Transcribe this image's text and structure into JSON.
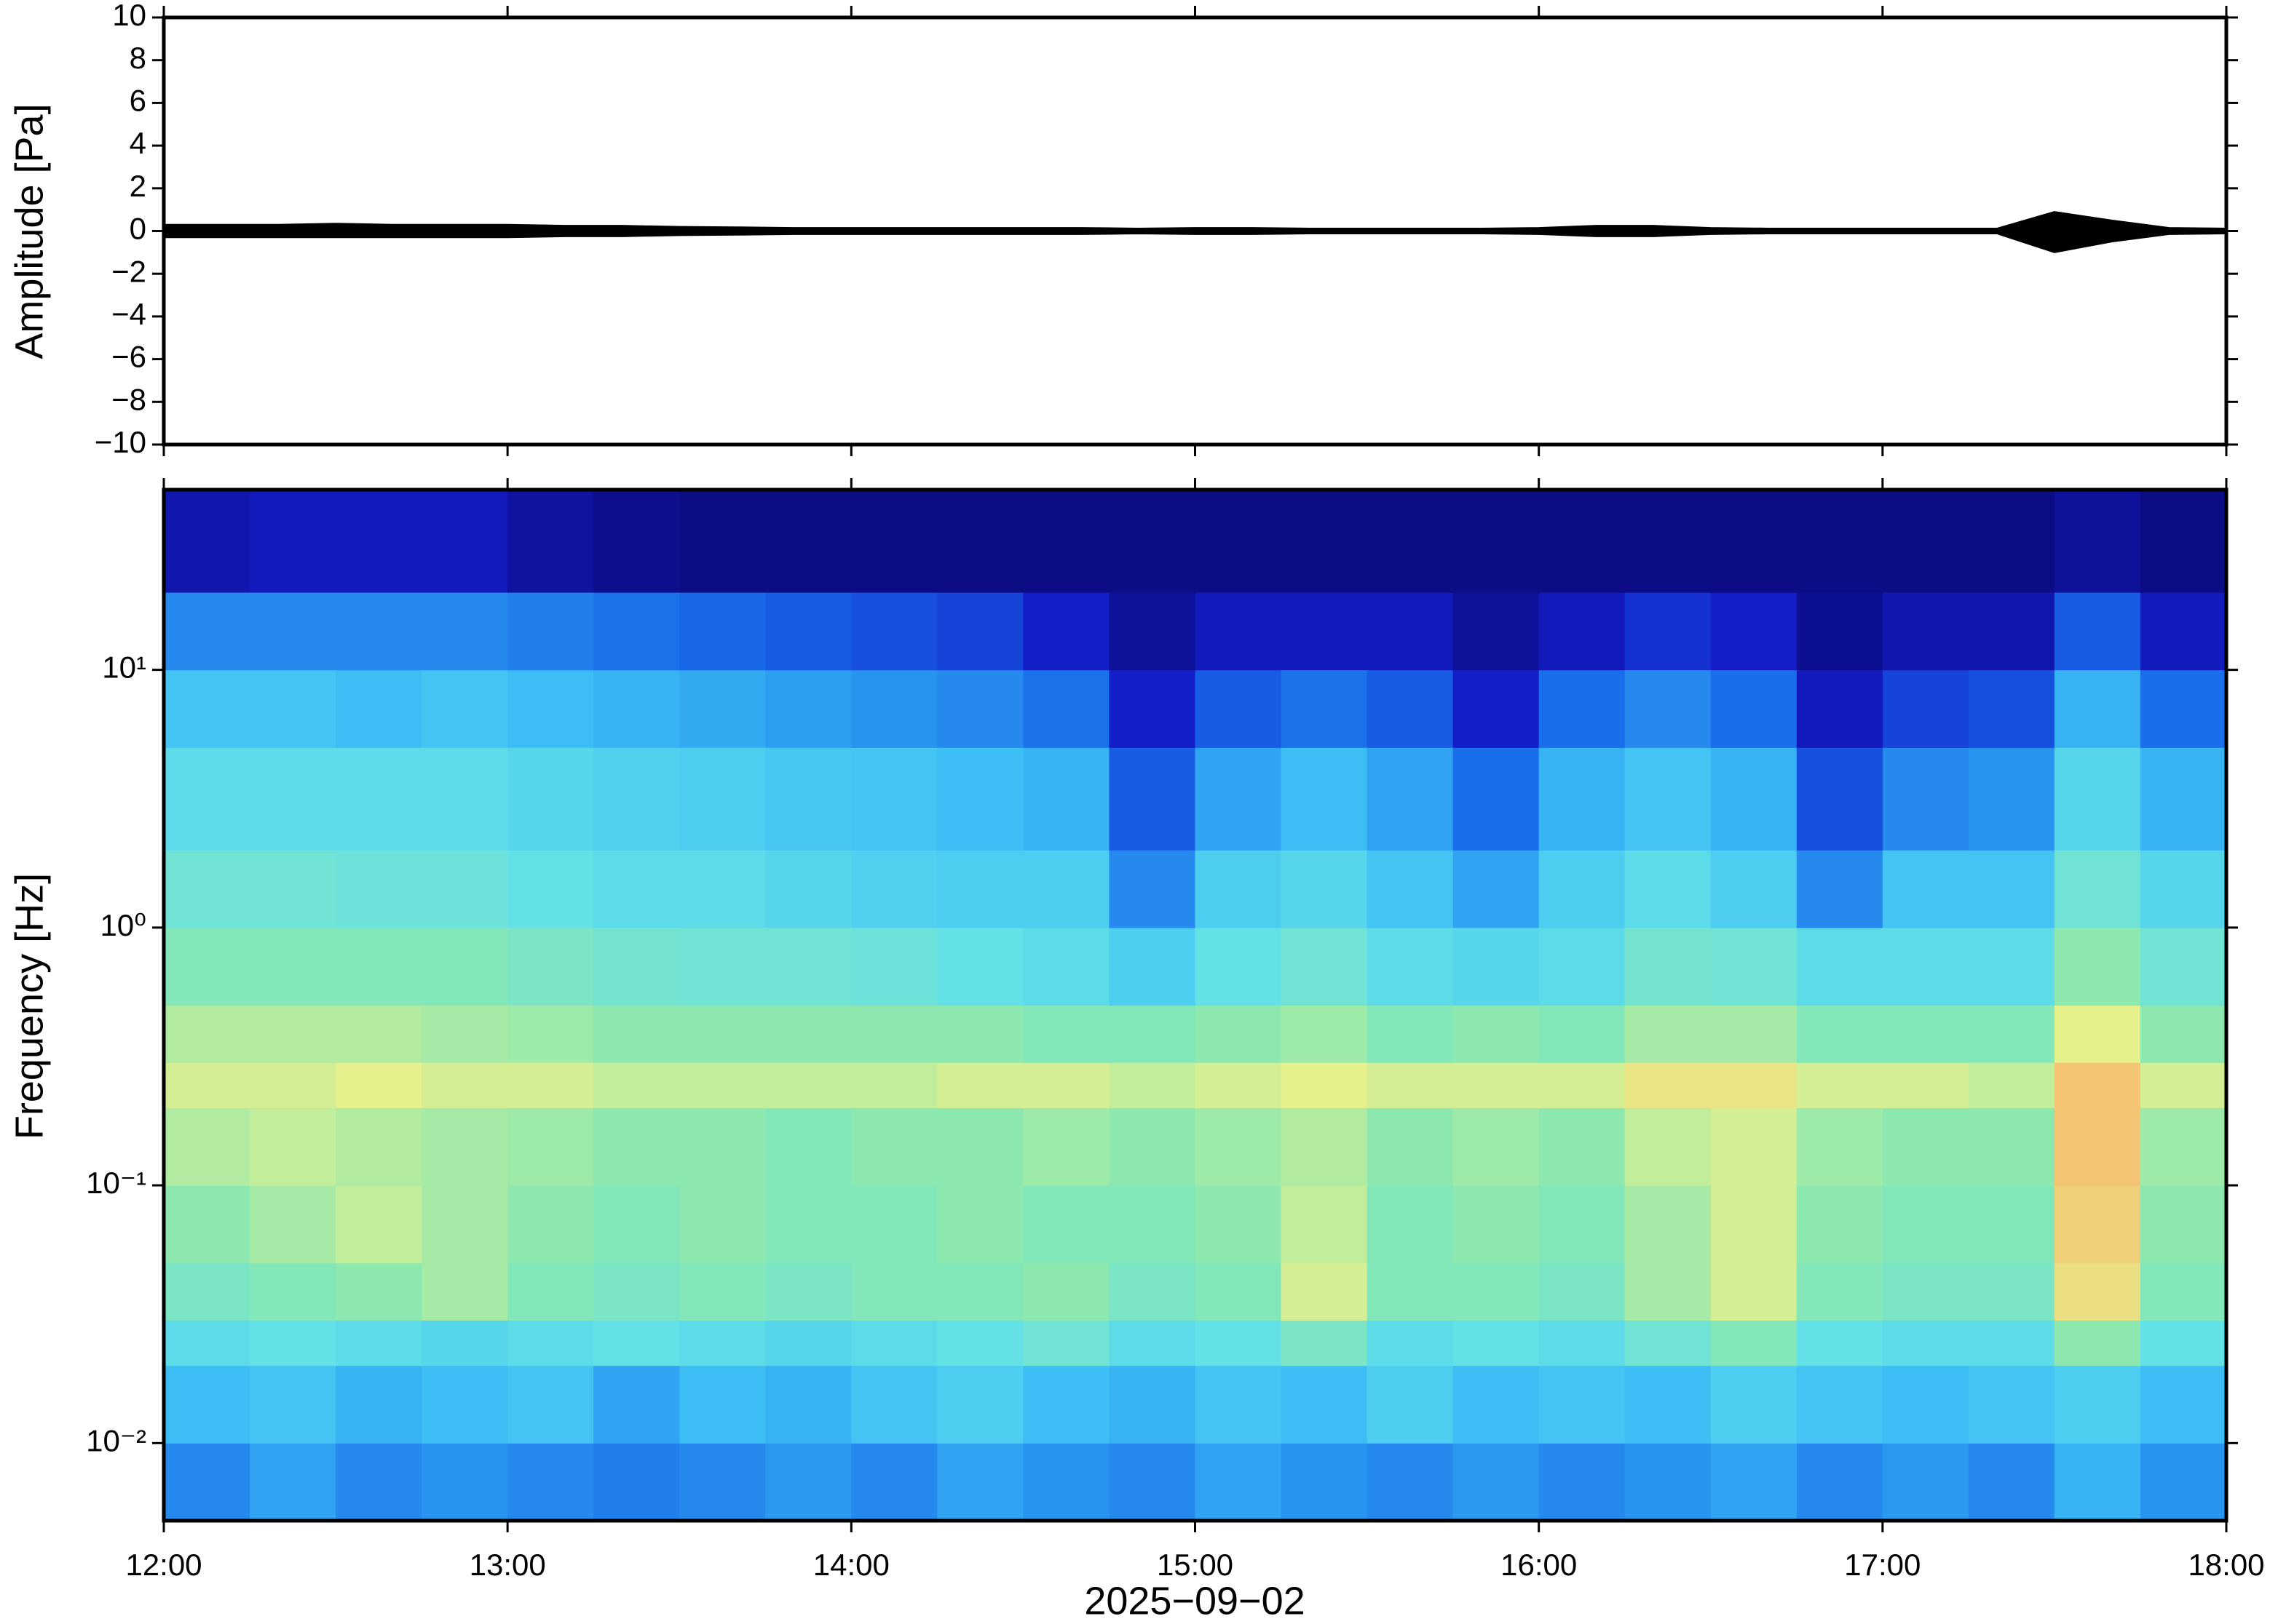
{
  "chart_data": [
    {
      "type": "line",
      "ylabel": "Amplitude [Pa]",
      "color": "#000000",
      "x": [
        "12:00",
        "12:10",
        "12:20",
        "12:30",
        "12:40",
        "12:50",
        "13:00",
        "13:10",
        "13:20",
        "13:30",
        "13:40",
        "13:50",
        "14:00",
        "14:10",
        "14:20",
        "14:30",
        "14:40",
        "14:50",
        "15:00",
        "15:10",
        "15:20",
        "15:30",
        "15:40",
        "15:50",
        "16:00",
        "16:10",
        "16:20",
        "16:30",
        "16:40",
        "16:50",
        "17:00",
        "17:10",
        "17:20",
        "17:30",
        "17:40",
        "17:50",
        "18:00"
      ],
      "upper": [
        0.3,
        0.3,
        0.3,
        0.35,
        0.3,
        0.3,
        0.3,
        0.25,
        0.25,
        0.2,
        0.18,
        0.15,
        0.15,
        0.15,
        0.15,
        0.15,
        0.15,
        0.12,
        0.15,
        0.15,
        0.12,
        0.12,
        0.12,
        0.12,
        0.15,
        0.25,
        0.25,
        0.15,
        0.12,
        0.12,
        0.12,
        0.12,
        0.12,
        0.9,
        0.5,
        0.15,
        0.12
      ],
      "lower": [
        -0.3,
        -0.3,
        -0.3,
        -0.3,
        -0.3,
        -0.3,
        -0.3,
        -0.25,
        -0.25,
        -0.2,
        -0.18,
        -0.15,
        -0.15,
        -0.15,
        -0.15,
        -0.15,
        -0.15,
        -0.12,
        -0.15,
        -0.15,
        -0.12,
        -0.12,
        -0.12,
        -0.12,
        -0.15,
        -0.25,
        -0.25,
        -0.15,
        -0.12,
        -0.12,
        -0.12,
        -0.12,
        -0.12,
        -1.0,
        -0.5,
        -0.15,
        -0.12
      ],
      "xlim": [
        "12:00",
        "18:00"
      ],
      "ylim": [
        -10,
        10
      ],
      "yticks": [
        10,
        8,
        6,
        4,
        2,
        0,
        {
          "value": -2,
          "label": "−2"
        },
        {
          "value": -4,
          "label": "−4"
        },
        {
          "value": -6,
          "label": "−6"
        },
        {
          "value": -8,
          "label": "−8"
        },
        {
          "value": -10,
          "label": "−10"
        }
      ]
    },
    {
      "type": "heatmap",
      "ylabel": "Frequency [Hz]",
      "xlabel": "2025−09−02",
      "log_y": true,
      "xbins": [
        "12:00",
        "12:15",
        "12:30",
        "12:45",
        "13:00",
        "13:15",
        "13:30",
        "13:45",
        "14:00",
        "14:15",
        "14:30",
        "14:45",
        "15:00",
        "15:15",
        "15:30",
        "15:45",
        "16:00",
        "16:15",
        "16:30",
        "16:45",
        "17:00",
        "17:15",
        "17:30",
        "17:45",
        "18:00"
      ],
      "ybins": [
        0.005,
        0.01,
        0.02,
        0.03,
        0.05,
        0.1,
        0.2,
        0.3,
        0.5,
        1,
        2,
        5,
        10,
        20,
        50
      ],
      "values": [
        [
          0.3,
          0.35,
          0.3,
          0.32,
          0.3,
          0.28,
          0.3,
          0.33,
          0.3,
          0.35,
          0.32,
          0.3,
          0.35,
          0.32,
          0.3,
          0.33,
          0.3,
          0.32,
          0.35,
          0.3,
          0.33,
          0.3,
          0.38,
          0.32
        ],
        [
          0.4,
          0.42,
          0.38,
          0.4,
          0.42,
          0.35,
          0.4,
          0.38,
          0.42,
          0.45,
          0.4,
          0.38,
          0.42,
          0.4,
          0.45,
          0.4,
          0.42,
          0.4,
          0.45,
          0.42,
          0.4,
          0.42,
          0.45,
          0.4
        ],
        [
          0.5,
          0.52,
          0.5,
          0.48,
          0.5,
          0.52,
          0.5,
          0.48,
          0.5,
          0.52,
          0.55,
          0.5,
          0.52,
          0.58,
          0.5,
          0.52,
          0.5,
          0.55,
          0.6,
          0.52,
          0.5,
          0.5,
          0.62,
          0.52
        ],
        [
          0.58,
          0.6,
          0.62,
          0.65,
          0.6,
          0.58,
          0.6,
          0.58,
          0.6,
          0.6,
          0.62,
          0.58,
          0.6,
          0.7,
          0.6,
          0.6,
          0.58,
          0.65,
          0.7,
          0.6,
          0.58,
          0.58,
          0.75,
          0.6
        ],
        [
          0.62,
          0.65,
          0.68,
          0.65,
          0.62,
          0.6,
          0.62,
          0.6,
          0.6,
          0.62,
          0.6,
          0.6,
          0.62,
          0.68,
          0.6,
          0.62,
          0.6,
          0.65,
          0.7,
          0.62,
          0.6,
          0.6,
          0.78,
          0.62
        ],
        [
          0.66,
          0.68,
          0.66,
          0.65,
          0.64,
          0.62,
          0.62,
          0.6,
          0.62,
          0.62,
          0.64,
          0.62,
          0.64,
          0.66,
          0.62,
          0.64,
          0.62,
          0.68,
          0.7,
          0.64,
          0.62,
          0.62,
          0.8,
          0.64
        ],
        [
          0.7,
          0.7,
          0.72,
          0.7,
          0.7,
          0.68,
          0.68,
          0.68,
          0.68,
          0.7,
          0.7,
          0.68,
          0.7,
          0.72,
          0.7,
          0.7,
          0.7,
          0.74,
          0.74,
          0.7,
          0.7,
          0.68,
          0.8,
          0.7
        ],
        [
          0.66,
          0.66,
          0.66,
          0.65,
          0.64,
          0.62,
          0.62,
          0.62,
          0.62,
          0.62,
          0.6,
          0.6,
          0.62,
          0.64,
          0.6,
          0.62,
          0.6,
          0.65,
          0.65,
          0.6,
          0.6,
          0.6,
          0.72,
          0.62
        ],
        [
          0.6,
          0.6,
          0.6,
          0.6,
          0.58,
          0.56,
          0.55,
          0.55,
          0.54,
          0.52,
          0.5,
          0.45,
          0.52,
          0.55,
          0.5,
          0.48,
          0.5,
          0.56,
          0.55,
          0.5,
          0.5,
          0.5,
          0.62,
          0.55
        ],
        [
          0.55,
          0.55,
          0.54,
          0.54,
          0.52,
          0.5,
          0.5,
          0.48,
          0.46,
          0.45,
          0.45,
          0.3,
          0.45,
          0.48,
          0.42,
          0.35,
          0.45,
          0.5,
          0.45,
          0.3,
          0.42,
          0.42,
          0.55,
          0.48
        ],
        [
          0.5,
          0.5,
          0.5,
          0.5,
          0.48,
          0.46,
          0.45,
          0.43,
          0.42,
          0.4,
          0.38,
          0.22,
          0.35,
          0.4,
          0.35,
          0.25,
          0.38,
          0.42,
          0.38,
          0.2,
          0.3,
          0.32,
          0.48,
          0.38
        ],
        [
          0.42,
          0.42,
          0.4,
          0.42,
          0.4,
          0.38,
          0.36,
          0.34,
          0.32,
          0.3,
          0.26,
          0.12,
          0.22,
          0.26,
          0.22,
          0.12,
          0.25,
          0.3,
          0.25,
          0.1,
          0.18,
          0.2,
          0.38,
          0.25
        ],
        [
          0.3,
          0.3,
          0.3,
          0.3,
          0.28,
          0.26,
          0.24,
          0.22,
          0.2,
          0.18,
          0.12,
          0.05,
          0.1,
          0.1,
          0.1,
          0.05,
          0.1,
          0.15,
          0.12,
          0.04,
          0.08,
          0.08,
          0.22,
          0.1
        ],
        [
          0.08,
          0.1,
          0.1,
          0.1,
          0.06,
          0.03,
          0.02,
          0.02,
          0.02,
          0.02,
          0.02,
          0.02,
          0.02,
          0.02,
          0.02,
          0.02,
          0.02,
          0.02,
          0.02,
          0.02,
          0.02,
          0.02,
          0.05,
          0.02
        ]
      ],
      "xlim": [
        "12:00",
        "18:00"
      ],
      "xticks": [
        "12:00",
        "13:00",
        "14:00",
        "15:00",
        "16:00",
        "17:00",
        "18:00"
      ],
      "ylim": [
        0.005,
        50
      ],
      "yticks": [
        {
          "value": 10,
          "label": "10¹"
        },
        {
          "value": 1,
          "label": "10⁰"
        },
        {
          "value": 0.1,
          "label": "10⁻¹"
        },
        {
          "value": 0.01,
          "label": "10⁻²"
        }
      ]
    }
  ]
}
